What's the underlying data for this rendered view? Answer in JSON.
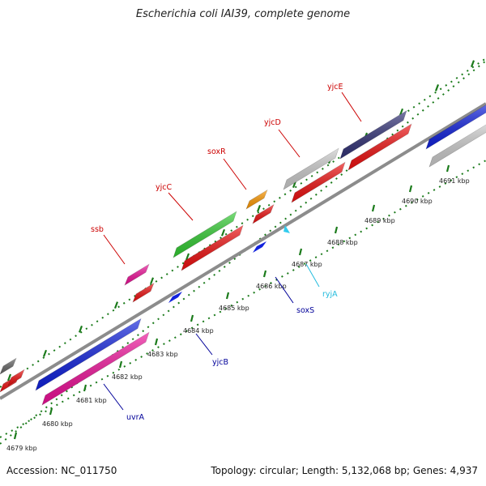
{
  "title": "Escherichia coli IAI39, complete genome",
  "footer": {
    "accession": "Accession: NC_011750",
    "summary": "Topology: circular; Length: 5,132,068 bp; Genes: 4,937"
  },
  "ticks": [
    {
      "label": "4679 kbp"
    },
    {
      "label": "4680 kbp"
    },
    {
      "label": "4681 kbp"
    },
    {
      "label": "4682 kbp"
    },
    {
      "label": "4683 kbp"
    },
    {
      "label": "4684 kbp"
    },
    {
      "label": "4685 kbp"
    },
    {
      "label": "4686 kbp"
    },
    {
      "label": "4687 kbp"
    },
    {
      "label": "4688 kbp"
    },
    {
      "label": "4689 kbp"
    },
    {
      "label": "4690 kbp"
    },
    {
      "label": "4691 kbp"
    }
  ],
  "gene_labels": [
    {
      "name": "ssb",
      "color": "#cc0000"
    },
    {
      "name": "yjcC",
      "color": "#cc0000"
    },
    {
      "name": "soxR",
      "color": "#cc0000"
    },
    {
      "name": "yjcD",
      "color": "#cc0000"
    },
    {
      "name": "yjcE",
      "color": "#cc0000"
    },
    {
      "name": "uvrA",
      "color": "#000099"
    },
    {
      "name": "yjcB",
      "color": "#000099"
    },
    {
      "name": "soxS",
      "color": "#000099"
    },
    {
      "name": "ryjA",
      "color": "#22bbdd"
    }
  ],
  "colors": {
    "backbone": "#8c8c8c",
    "tick": "#1a7a1a",
    "cds_red": "#ee1111",
    "blue": "#1122dd",
    "magenta": "#ee1199",
    "green": "#33cc33",
    "orange": "#ff9900",
    "light_gray": "#cccccc",
    "purple": "#333377",
    "dark_gray": "#666666"
  }
}
